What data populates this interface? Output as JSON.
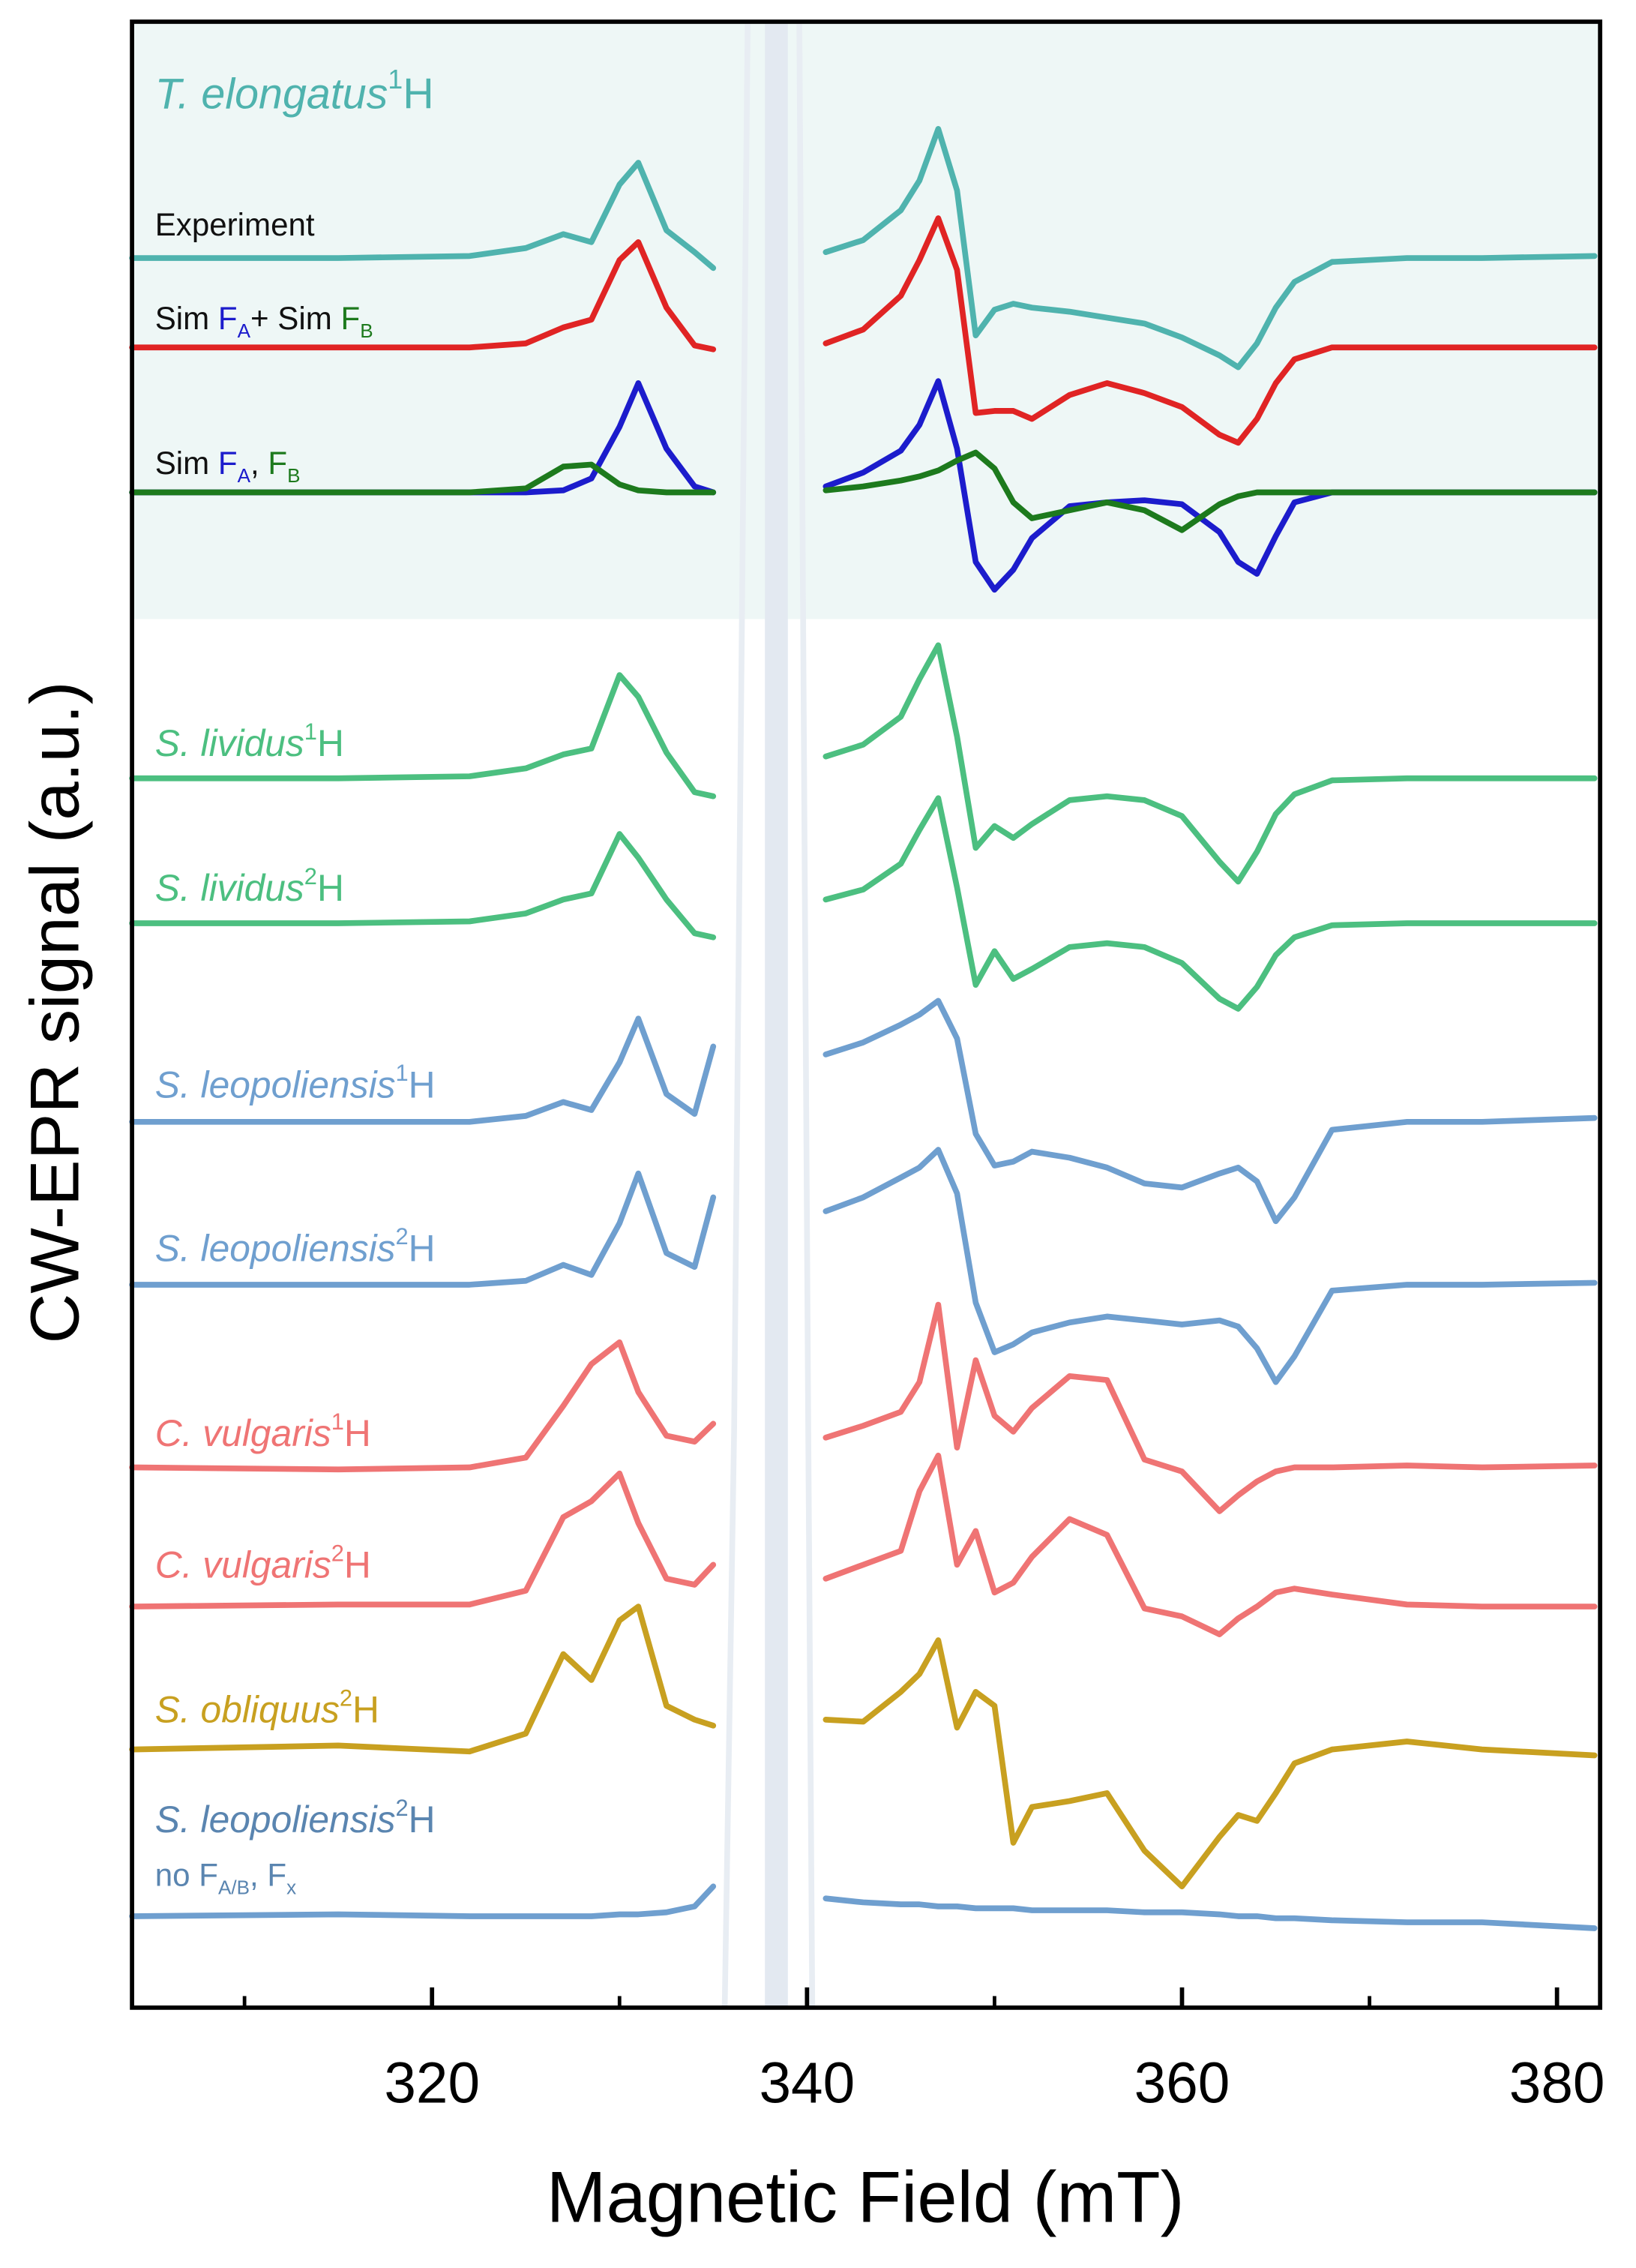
{
  "chart_data": {
    "type": "line",
    "xlabel": "Magnetic Field (mT)",
    "ylabel": "CW-EPR signal (a.u.)",
    "xlim": [
      304,
      382.3
    ],
    "ylim": [
      0,
      100
    ],
    "xticks": [
      320,
      340,
      360,
      380
    ],
    "xminor": [
      310,
      330,
      350,
      370
    ],
    "x": [
      304,
      315,
      322,
      325,
      327,
      328.5,
      330,
      331,
      332.5,
      334,
      335,
      338,
      341,
      343,
      345,
      346,
      347,
      348,
      349,
      350,
      351,
      352,
      354,
      356,
      358,
      360,
      362,
      363,
      364,
      365,
      366,
      368,
      372,
      376,
      382
    ],
    "series": [
      {
        "color": "#4fb3ae",
        "values": [
          88.1,
          88.1,
          88.2,
          88.6,
          89.3,
          88.9,
          91.8,
          92.9,
          89.5,
          88.4,
          87.6,
          null,
          88.4,
          89.0,
          90.5,
          92.0,
          94.6,
          91.5,
          84.2,
          85.5,
          85.8,
          85.6,
          85.4,
          85.1,
          84.8,
          84.1,
          83.2,
          82.6,
          83.8,
          85.6,
          86.9,
          87.9,
          88.1,
          88.1,
          88.2
        ]
      },
      {
        "color": "#e02424",
        "values": [
          83.6,
          83.6,
          83.6,
          83.8,
          84.6,
          85.0,
          88.0,
          88.9,
          85.6,
          83.7,
          83.5,
          null,
          83.8,
          84.5,
          86.2,
          88.0,
          90.1,
          87.5,
          80.3,
          80.4,
          80.4,
          80.0,
          81.2,
          81.8,
          81.3,
          80.6,
          79.2,
          78.8,
          80.0,
          81.8,
          83.0,
          83.6,
          83.6,
          83.6,
          83.6
        ]
      },
      {
        "color": "#1c1ccc",
        "values": [
          76.3,
          76.3,
          76.3,
          76.3,
          76.4,
          77.0,
          79.6,
          81.8,
          78.5,
          76.6,
          76.3,
          null,
          76.6,
          77.3,
          78.4,
          79.7,
          81.9,
          78.5,
          72.8,
          71.4,
          72.4,
          74.0,
          75.6,
          75.8,
          75.9,
          75.7,
          74.3,
          72.8,
          72.2,
          74.1,
          75.8,
          76.3,
          76.3,
          76.3,
          76.3
        ]
      },
      {
        "color": "#1d7a1d",
        "values": [
          76.3,
          76.3,
          76.3,
          76.5,
          77.6,
          77.7,
          76.7,
          76.4,
          76.3,
          76.3,
          76.3,
          null,
          76.4,
          76.6,
          76.9,
          77.1,
          77.4,
          77.9,
          78.3,
          77.5,
          75.8,
          75.0,
          75.4,
          75.8,
          75.4,
          74.4,
          75.7,
          76.1,
          76.3,
          76.3,
          76.3,
          76.3,
          76.3,
          76.3,
          76.3
        ]
      },
      {
        "color": "#4cbf80",
        "values": [
          61.9,
          61.9,
          62.0,
          62.4,
          63.1,
          63.4,
          67.1,
          66.0,
          63.2,
          61.2,
          61.0,
          null,
          63.0,
          63.6,
          65.0,
          66.9,
          68.6,
          64.0,
          58.4,
          59.5,
          58.9,
          59.6,
          60.8,
          61.0,
          60.8,
          60.0,
          57.7,
          56.7,
          58.2,
          60.1,
          61.1,
          61.8,
          61.9,
          61.9,
          61.9
        ]
      },
      {
        "color": "#4cbf80",
        "values": [
          54.6,
          54.6,
          54.7,
          55.1,
          55.8,
          56.1,
          59.1,
          57.9,
          55.8,
          54.1,
          53.9,
          null,
          55.8,
          56.3,
          57.6,
          59.3,
          60.9,
          56.4,
          51.5,
          53.2,
          51.8,
          52.3,
          53.4,
          53.6,
          53.4,
          52.6,
          50.8,
          50.3,
          51.4,
          53.0,
          53.9,
          54.5,
          54.6,
          54.6,
          54.6
        ]
      },
      {
        "color": "#6f9fcf",
        "values": [
          44.6,
          44.6,
          44.6,
          44.9,
          45.6,
          45.2,
          47.6,
          49.8,
          46.0,
          45.0,
          48.4,
          null,
          48.0,
          48.6,
          49.5,
          50.0,
          50.7,
          48.8,
          44.0,
          42.4,
          42.6,
          43.1,
          42.8,
          42.3,
          41.5,
          41.3,
          42.0,
          42.3,
          41.6,
          39.6,
          40.8,
          44.2,
          44.6,
          44.6,
          44.8
        ]
      },
      {
        "color": "#6f9fcf",
        "values": [
          36.4,
          36.4,
          36.4,
          36.6,
          37.4,
          36.9,
          39.5,
          42.0,
          38.0,
          37.3,
          40.8,
          null,
          40.1,
          40.8,
          41.8,
          42.3,
          43.2,
          41.0,
          35.5,
          33.0,
          33.4,
          34.0,
          34.5,
          34.8,
          34.6,
          34.4,
          34.6,
          34.3,
          33.2,
          31.5,
          32.8,
          36.1,
          36.4,
          36.4,
          36.5
        ]
      },
      {
        "color": "#ef7474",
        "values": [
          27.2,
          27.1,
          27.2,
          27.7,
          30.3,
          32.4,
          33.5,
          31.0,
          28.8,
          28.5,
          29.4,
          null,
          28.7,
          29.3,
          30.0,
          31.5,
          35.4,
          28.2,
          32.6,
          29.8,
          29.0,
          30.2,
          31.8,
          31.6,
          27.6,
          27.0,
          25.0,
          25.8,
          26.5,
          27.0,
          27.2,
          27.2,
          27.3,
          27.2,
          27.3
        ]
      },
      {
        "color": "#ef7474",
        "values": [
          20.2,
          20.3,
          20.3,
          21.0,
          24.7,
          25.5,
          26.9,
          24.4,
          21.6,
          21.3,
          22.3,
          null,
          21.6,
          22.3,
          23.0,
          26.0,
          27.8,
          22.3,
          24.0,
          20.9,
          21.4,
          22.7,
          24.6,
          23.8,
          20.1,
          19.7,
          18.8,
          19.6,
          20.2,
          20.9,
          21.1,
          20.8,
          20.3,
          20.2,
          20.2
        ]
      },
      {
        "color": "#c8a020",
        "values": [
          13.0,
          13.2,
          12.9,
          13.8,
          17.8,
          16.5,
          19.5,
          20.2,
          15.2,
          14.5,
          14.2,
          null,
          14.5,
          14.4,
          15.9,
          16.8,
          18.5,
          14.1,
          15.9,
          15.2,
          8.3,
          10.1,
          10.4,
          10.8,
          7.9,
          6.1,
          8.6,
          9.7,
          9.4,
          10.8,
          12.3,
          13.0,
          13.4,
          13.0,
          12.7
        ]
      },
      {
        "color": "#6f9fcf",
        "values": [
          4.6,
          4.7,
          4.6,
          4.6,
          4.6,
          4.6,
          4.7,
          4.7,
          4.8,
          5.1,
          6.1,
          null,
          5.5,
          5.3,
          5.2,
          5.2,
          5.1,
          5.1,
          5.0,
          5.0,
          5.0,
          4.9,
          4.9,
          4.9,
          4.8,
          4.8,
          4.7,
          4.6,
          4.6,
          4.5,
          4.5,
          4.4,
          4.3,
          4.3,
          4.0
        ]
      }
    ],
    "labels": [
      {
        "color": "#4fb3ae",
        "lines": [
          [
            {
              "text": "T. elongatus",
              "italic": true
            },
            {
              "text": "1",
              "sup": true
            },
            {
              "text": "H"
            }
          ]
        ]
      },
      {
        "color": "#111111",
        "lines": [
          [
            {
              "text": "Experiment"
            }
          ]
        ]
      },
      {
        "color": "#111111",
        "lines": [
          [
            {
              "text": "Sim "
            },
            {
              "text": "F",
              "color": "#1c1ccc"
            },
            {
              "text": "A",
              "sub": true,
              "color": "#1c1ccc"
            },
            {
              "text": "+ Sim "
            },
            {
              "text": "F",
              "color": "#1d7a1d"
            },
            {
              "text": "B",
              "sub": true,
              "color": "#1d7a1d"
            }
          ]
        ]
      },
      {
        "color": "#111111",
        "lines": [
          [
            {
              "text": "Sim "
            },
            {
              "text": "F",
              "color": "#1c1ccc"
            },
            {
              "text": "A",
              "sub": true,
              "color": "#1c1ccc"
            },
            {
              "text": ", "
            },
            {
              "text": "F",
              "color": "#1d7a1d"
            },
            {
              "text": "B",
              "sub": true,
              "color": "#1d7a1d"
            }
          ]
        ]
      },
      {
        "color": "#4cbf80",
        "lines": [
          [
            {
              "text": "S. lividus",
              "italic": true
            },
            {
              "text": "1",
              "sup": true
            },
            {
              "text": "H"
            }
          ]
        ]
      },
      {
        "color": "#4cbf80",
        "lines": [
          [
            {
              "text": "S. lividus",
              "italic": true
            },
            {
              "text": "2",
              "sup": true
            },
            {
              "text": "H"
            }
          ]
        ]
      },
      {
        "color": "#6f9fcf",
        "lines": [
          [
            {
              "text": "S. leopoliensis",
              "italic": true
            },
            {
              "text": "1",
              "sup": true
            },
            {
              "text": "H"
            }
          ]
        ]
      },
      {
        "color": "#6f9fcf",
        "lines": [
          [
            {
              "text": "S. leopoliensis",
              "italic": true
            },
            {
              "text": "2",
              "sup": true
            },
            {
              "text": "H"
            }
          ]
        ]
      },
      {
        "color": "#ef7474",
        "lines": [
          [
            {
              "text": "C. vulgaris",
              "italic": true
            },
            {
              "text": "1",
              "sup": true
            },
            {
              "text": "H"
            }
          ]
        ]
      },
      {
        "color": "#ef7474",
        "lines": [
          [
            {
              "text": "C. vulgaris",
              "italic": true
            },
            {
              "text": "2",
              "sup": true
            },
            {
              "text": "H"
            }
          ]
        ]
      },
      {
        "color": "#c8a020",
        "lines": [
          [
            {
              "text": "S. obliquus",
              "italic": true
            },
            {
              "text": "2",
              "sup": true
            },
            {
              "text": "H"
            }
          ]
        ]
      },
      {
        "color": "#5a85b0",
        "lines": [
          [
            {
              "text": "S. leopoliensis",
              "italic": true
            },
            {
              "text": "2",
              "sup": true
            },
            {
              "text": "H"
            }
          ],
          [
            {
              "text": "no F"
            },
            {
              "text": "A/B",
              "sub": true
            },
            {
              "text": ", F"
            },
            {
              "text": "x",
              "sub": true
            }
          ]
        ]
      }
    ]
  }
}
